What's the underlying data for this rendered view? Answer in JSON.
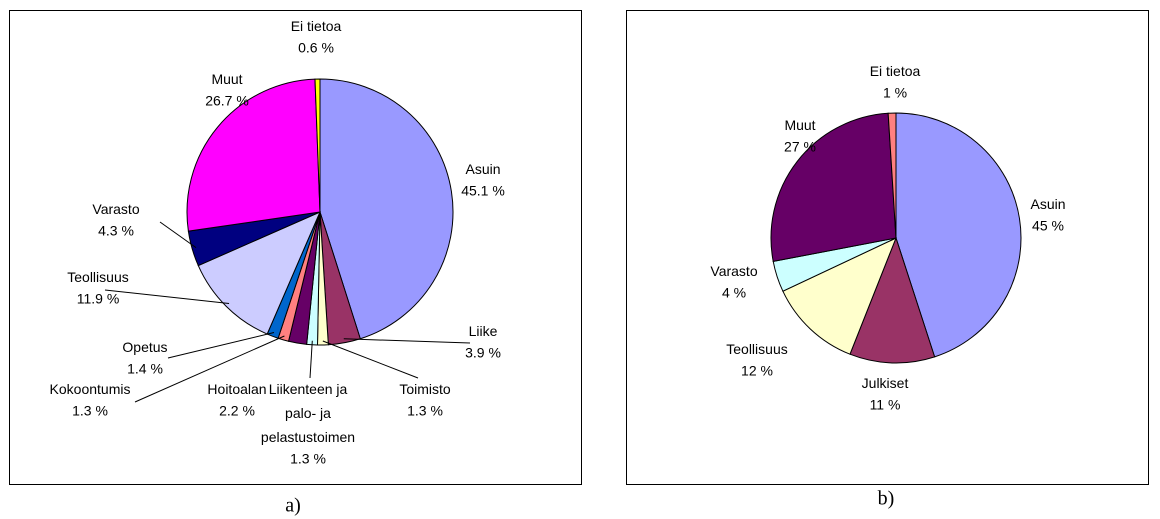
{
  "chart_data": [
    {
      "type": "pie",
      "categories": [
        "Asuin",
        "Liike",
        "Toimisto",
        "Liikenteen ja\npalo- ja\npelastustoimen",
        "Hoitoalan",
        "Kokoontumis",
        "Opetus",
        "Teollisuus",
        "Varasto",
        "Muut",
        "Ei tietoa"
      ],
      "values": [
        45.1,
        3.9,
        1.3,
        1.3,
        2.2,
        1.3,
        1.4,
        11.9,
        4.3,
        26.7,
        0.6
      ],
      "value_labels": [
        "45.1 %",
        "3.9 %",
        "1.3 %",
        "1.3 %",
        "2.2 %",
        "1.3 %",
        "1.4 %",
        "11.9 %",
        "4.3 %",
        "26.7 %",
        "0.6 %"
      ],
      "colors": [
        "#9999ff",
        "#993366",
        "#ffffcc",
        "#ccffff",
        "#660066",
        "#ff8080",
        "#0066cc",
        "#ccccff",
        "#000080",
        "#ff00ff",
        "#ffff00"
      ],
      "caption": "a)"
    },
    {
      "type": "pie",
      "categories": [
        "Asuin",
        "Julkiset",
        "Teollisuus",
        "Varasto",
        "Muut",
        "Ei tietoa"
      ],
      "values": [
        45,
        11,
        12,
        4,
        27,
        1
      ],
      "value_labels": [
        "45 %",
        "11 %",
        "12 %",
        "4 %",
        "27 %",
        "1 %"
      ],
      "colors": [
        "#9999ff",
        "#993366",
        "#ffffcc",
        "#ccffff",
        "#660066",
        "#ff8080"
      ],
      "caption": "b)"
    }
  ]
}
